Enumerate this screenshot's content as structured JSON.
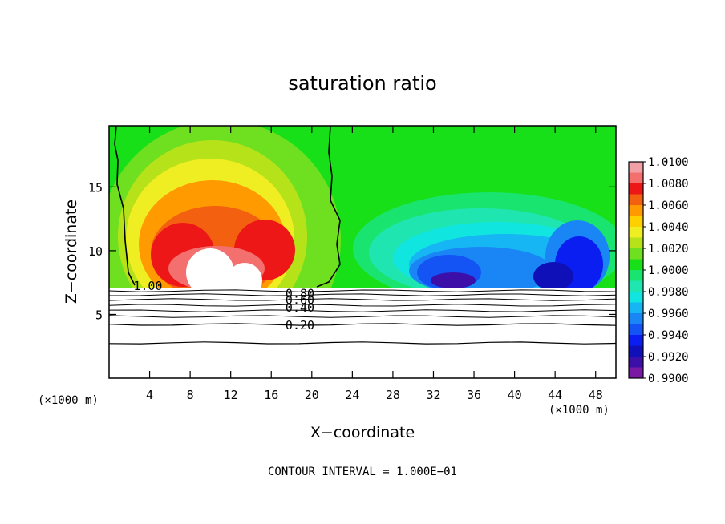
{
  "chart_data": {
    "type": "heatmap",
    "title": "saturation ratio",
    "xlabel": "X−coordinate",
    "ylabel": "Z−coordinate",
    "x_unit": "(×1000 m)",
    "y_unit": "(×1000 m)",
    "xlim": [
      0,
      50
    ],
    "ylim": [
      0,
      19.8
    ],
    "x_ticks": [
      4,
      8,
      12,
      16,
      20,
      24,
      28,
      32,
      36,
      40,
      44,
      48
    ],
    "y_ticks": [
      5,
      10,
      15
    ],
    "footer": "CONTOUR INTERVAL = 1.000E−01",
    "colorbar": {
      "levels": [
        "1.0100",
        "1.0080",
        "1.0060",
        "1.0040",
        "1.0020",
        "1.0000",
        "0.9980",
        "0.9960",
        "0.9940",
        "0.9920",
        "0.9900"
      ],
      "colors": [
        "#f1a0a6",
        "#f4706f",
        "#ee1717",
        "#f26010",
        "#ff9a00",
        "#ffd000",
        "#eeee22",
        "#b6e219",
        "#6ee020",
        "#18e018",
        "#19e46f",
        "#1fe6b0",
        "#10e6df",
        "#16b6f4",
        "#1a86f6",
        "#1454f4",
        "#0a1ef2",
        "#1010b8",
        "#3c10a8",
        "#7a1aa4"
      ]
    },
    "contour_labels": [
      {
        "text": "1.00",
        "x": 2.4,
        "z": 7.3
      },
      {
        "text": "0.80",
        "x": 17.4,
        "z": 6.7
      },
      {
        "text": "0.60",
        "x": 17.4,
        "z": 6.2
      },
      {
        "text": "0.40",
        "x": 17.4,
        "z": 5.6
      },
      {
        "text": "0.20",
        "x": 17.4,
        "z": 4.2
      }
    ]
  }
}
